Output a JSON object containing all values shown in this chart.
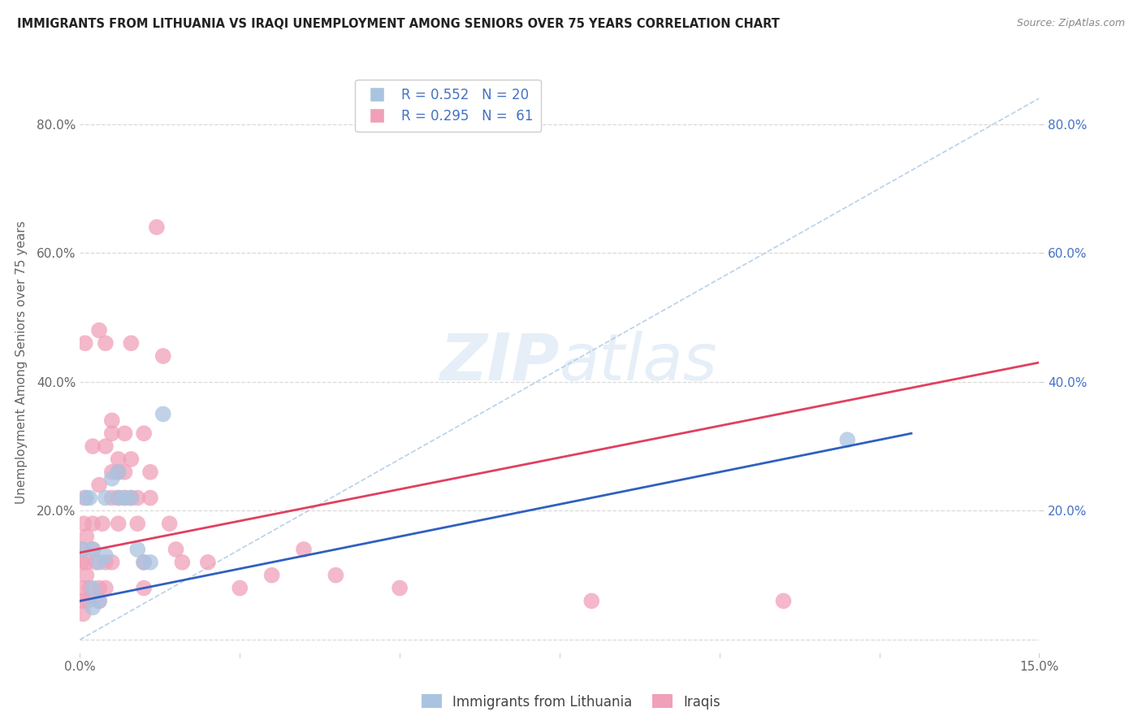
{
  "title": "IMMIGRANTS FROM LITHUANIA VS IRAQI UNEMPLOYMENT AMONG SENIORS OVER 75 YEARS CORRELATION CHART",
  "source": "Source: ZipAtlas.com",
  "ylabel": "Unemployment Among Seniors over 75 years",
  "xlim": [
    0.0,
    0.15
  ],
  "ylim": [
    -0.02,
    0.88
  ],
  "legend_blue_r": "0.552",
  "legend_blue_n": "20",
  "legend_pink_r": "0.295",
  "legend_pink_n": "61",
  "legend_label_blue": "Immigrants from Lithuania",
  "legend_label_pink": "Iraqis",
  "watermark_zip": "ZIP",
  "watermark_atlas": "atlas",
  "blue_color": "#aac4e0",
  "pink_color": "#f0a0b8",
  "blue_line_color": "#3060c0",
  "pink_line_color": "#e04060",
  "dashed_line_color": "#b0cce8",
  "grid_color": "#d0d0d0",
  "right_axis_color": "#4472c4",
  "title_color": "#222222",
  "source_color": "#888888",
  "tick_color": "#666666",
  "blue_scatter": [
    [
      0.0005,
      0.14
    ],
    [
      0.001,
      0.22
    ],
    [
      0.0015,
      0.22
    ],
    [
      0.002,
      0.14
    ],
    [
      0.002,
      0.08
    ],
    [
      0.003,
      0.06
    ],
    [
      0.003,
      0.12
    ],
    [
      0.004,
      0.22
    ],
    [
      0.004,
      0.13
    ],
    [
      0.005,
      0.25
    ],
    [
      0.006,
      0.22
    ],
    [
      0.006,
      0.26
    ],
    [
      0.007,
      0.22
    ],
    [
      0.008,
      0.22
    ],
    [
      0.009,
      0.14
    ],
    [
      0.01,
      0.12
    ],
    [
      0.011,
      0.12
    ],
    [
      0.013,
      0.35
    ],
    [
      0.12,
      0.31
    ],
    [
      0.002,
      0.05
    ]
  ],
  "pink_scatter": [
    [
      0.0002,
      0.14
    ],
    [
      0.0003,
      0.12
    ],
    [
      0.0004,
      0.08
    ],
    [
      0.0005,
      0.04
    ],
    [
      0.0005,
      0.06
    ],
    [
      0.0006,
      0.18
    ],
    [
      0.0007,
      0.22
    ],
    [
      0.0008,
      0.46
    ],
    [
      0.001,
      0.1
    ],
    [
      0.001,
      0.12
    ],
    [
      0.001,
      0.16
    ],
    [
      0.0012,
      0.06
    ],
    [
      0.0015,
      0.08
    ],
    [
      0.002,
      0.3
    ],
    [
      0.002,
      0.14
    ],
    [
      0.002,
      0.18
    ],
    [
      0.0025,
      0.12
    ],
    [
      0.003,
      0.08
    ],
    [
      0.003,
      0.06
    ],
    [
      0.003,
      0.48
    ],
    [
      0.003,
      0.24
    ],
    [
      0.0035,
      0.18
    ],
    [
      0.004,
      0.12
    ],
    [
      0.004,
      0.3
    ],
    [
      0.004,
      0.08
    ],
    [
      0.004,
      0.46
    ],
    [
      0.005,
      0.26
    ],
    [
      0.005,
      0.22
    ],
    [
      0.005,
      0.32
    ],
    [
      0.005,
      0.12
    ],
    [
      0.005,
      0.34
    ],
    [
      0.006,
      0.28
    ],
    [
      0.006,
      0.22
    ],
    [
      0.006,
      0.18
    ],
    [
      0.006,
      0.26
    ],
    [
      0.007,
      0.22
    ],
    [
      0.007,
      0.26
    ],
    [
      0.007,
      0.32
    ],
    [
      0.008,
      0.28
    ],
    [
      0.008,
      0.46
    ],
    [
      0.008,
      0.22
    ],
    [
      0.009,
      0.18
    ],
    [
      0.009,
      0.22
    ],
    [
      0.01,
      0.12
    ],
    [
      0.01,
      0.08
    ],
    [
      0.01,
      0.32
    ],
    [
      0.011,
      0.22
    ],
    [
      0.011,
      0.26
    ],
    [
      0.012,
      0.64
    ],
    [
      0.013,
      0.44
    ],
    [
      0.014,
      0.18
    ],
    [
      0.015,
      0.14
    ],
    [
      0.016,
      0.12
    ],
    [
      0.02,
      0.12
    ],
    [
      0.025,
      0.08
    ],
    [
      0.03,
      0.1
    ],
    [
      0.035,
      0.14
    ],
    [
      0.04,
      0.1
    ],
    [
      0.05,
      0.08
    ],
    [
      0.11,
      0.06
    ],
    [
      0.08,
      0.06
    ]
  ],
  "blue_trend_x": [
    0.0,
    0.13
  ],
  "blue_trend_y": [
    0.06,
    0.32
  ],
  "pink_trend_x": [
    0.0,
    0.15
  ],
  "pink_trend_y": [
    0.135,
    0.43
  ],
  "dashed_trend_x": [
    0.0,
    0.15
  ],
  "dashed_trend_y": [
    0.0,
    0.84
  ],
  "yticks": [
    0.0,
    0.2,
    0.4,
    0.6,
    0.8
  ],
  "ytick_labels": [
    "",
    "20.0%",
    "40.0%",
    "60.0%",
    "80.0%"
  ],
  "xtick_labels_left": "0.0%",
  "xtick_labels_right": "15.0%"
}
